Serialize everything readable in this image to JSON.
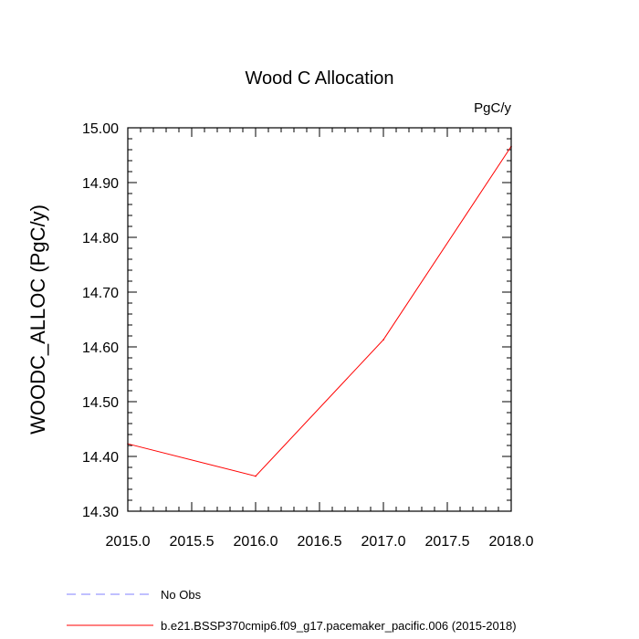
{
  "chart_data": {
    "type": "line",
    "title": "Wood C Allocation",
    "units_label": "PgC/y",
    "xlabel": "",
    "ylabel": "WOODC_ALLOC  (PgC/y)",
    "xlim": [
      2015.0,
      2018.0
    ],
    "ylim": [
      14.3,
      15.0
    ],
    "x_ticks": [
      "2015.0",
      "2015.5",
      "2016.0",
      "2016.5",
      "2017.0",
      "2017.5",
      "2018.0"
    ],
    "y_ticks": [
      "14.30",
      "14.40",
      "14.50",
      "14.60",
      "14.70",
      "14.80",
      "14.90",
      "15.00"
    ],
    "grid": false,
    "legend_position": "bottom",
    "series": [
      {
        "name": "b.e21.BSSP370cmip6.f09_g17.pacemaker_pacific.006 (2015-2018)",
        "color": "#ff0000",
        "style": "solid",
        "x": [
          2015,
          2016,
          2017,
          2018
        ],
        "values": [
          14.423,
          14.364,
          14.613,
          14.966
        ]
      }
    ],
    "legend": [
      {
        "label": "No Obs",
        "color": "#8080ff",
        "style": "dashed"
      },
      {
        "label": "b.e21.BSSP370cmip6.f09_g17.pacemaker_pacific.006 (2015-2018)",
        "color": "#ff0000",
        "style": "solid"
      }
    ]
  }
}
